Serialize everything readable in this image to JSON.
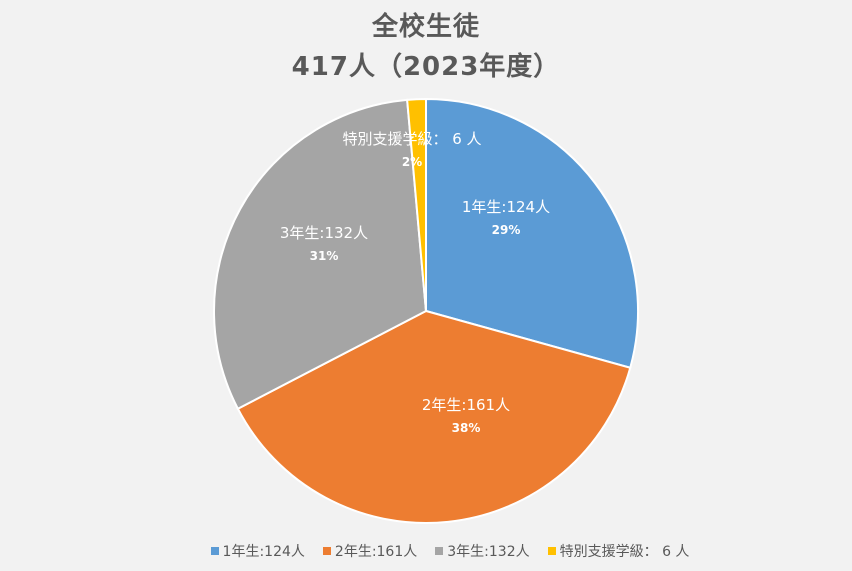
{
  "chart_data": {
    "type": "pie",
    "title_lines": [
      "全校生徒",
      "417人（2023年度）"
    ],
    "slices": [
      {
        "label": "1年生:124人",
        "value": 124,
        "percent_label": "29%",
        "color": "#5b9bd5"
      },
      {
        "label": "2年生:161人",
        "value": 161,
        "percent_label": "38%",
        "color": "#ed7d31"
      },
      {
        "label": "3年生:132人",
        "value": 132,
        "percent_label": "31%",
        "color": "#a5a5a5"
      },
      {
        "label": "特別支援学級： 6 人",
        "value": 6,
        "percent_label": "2%",
        "color": "#ffc000"
      }
    ],
    "legend_position": "bottom"
  }
}
